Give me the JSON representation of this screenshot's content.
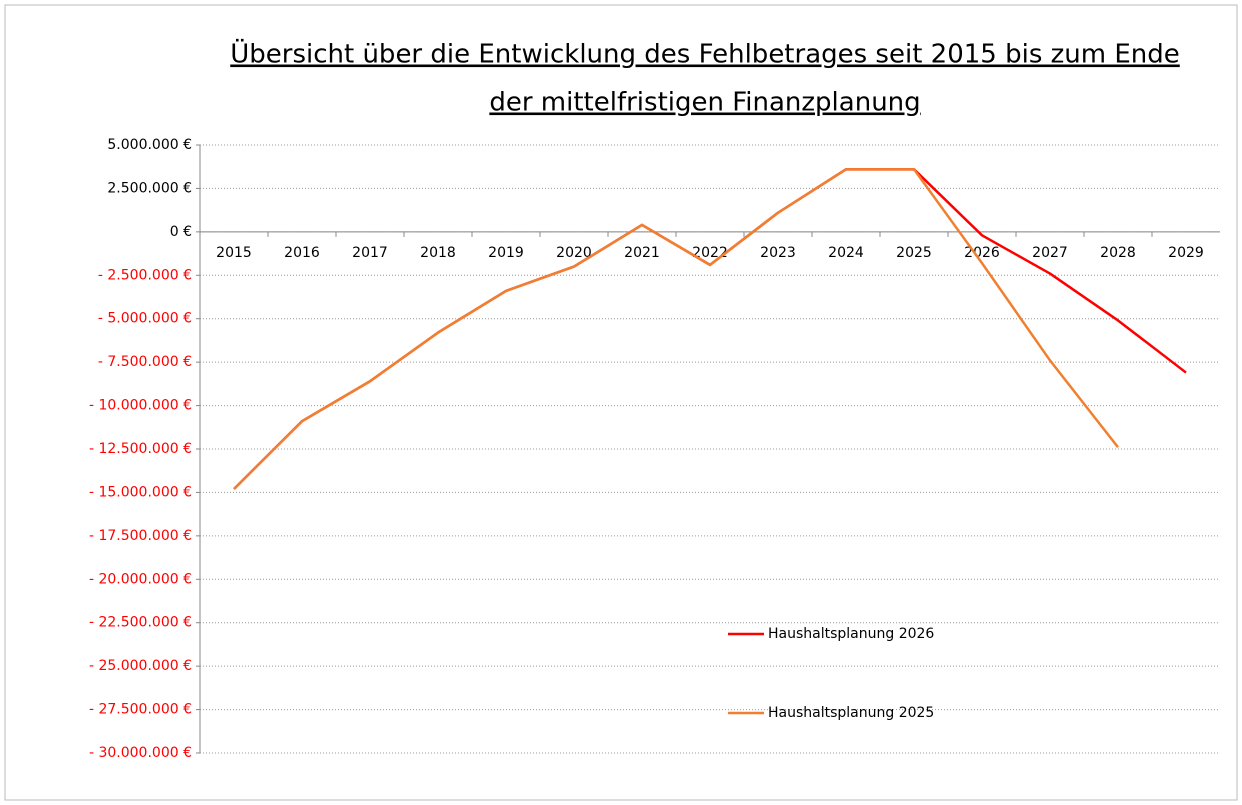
{
  "chart_data": {
    "type": "line",
    "title": [
      "Übersicht über die Entwicklung des Fehlbetrages seit 2015 bis zum Ende",
      "der mittelfristigen Finanzplanung"
    ],
    "categories": [
      "2015",
      "2016",
      "2017",
      "2018",
      "2019",
      "2020",
      "2021",
      "2022",
      "2023",
      "2024",
      "2025",
      "2026",
      "2027",
      "2028",
      "2029"
    ],
    "series": [
      {
        "name": "Haushaltsplanung 2026",
        "color": "#ff0000",
        "values": [
          -14800000,
          -10900000,
          -8600000,
          -5800000,
          -3400000,
          -2000000,
          400000,
          -1900000,
          1100000,
          3600000,
          3600000,
          -200000,
          -2400000,
          -5100000,
          -8100000
        ]
      },
      {
        "name": "Haushaltsplanung 2025",
        "color": "#f08030",
        "values": [
          -14800000,
          -10900000,
          -8600000,
          -5800000,
          -3400000,
          -2000000,
          400000,
          -1900000,
          1100000,
          3600000,
          3600000,
          -1800000,
          -7400000,
          -12400000,
          null
        ]
      }
    ],
    "ylim": [
      -30000000,
      5000000
    ],
    "yticks": [
      {
        "value": 5000000,
        "label": "5.000.000 €"
      },
      {
        "value": 2500000,
        "label": "2.500.000 €"
      },
      {
        "value": 0,
        "label": "0 €"
      },
      {
        "value": -2500000,
        "label": "- 2.500.000 €"
      },
      {
        "value": -5000000,
        "label": "- 5.000.000 €"
      },
      {
        "value": -7500000,
        "label": "- 7.500.000 €"
      },
      {
        "value": -10000000,
        "label": "- 10.000.000 €"
      },
      {
        "value": -12500000,
        "label": "- 12.500.000 €"
      },
      {
        "value": -15000000,
        "label": "- 15.000.000 €"
      },
      {
        "value": -17500000,
        "label": "- 17.500.000 €"
      },
      {
        "value": -20000000,
        "label": "- 20.000.000 €"
      },
      {
        "value": -22500000,
        "label": "- 22.500.000 €"
      },
      {
        "value": -25000000,
        "label": "- 25.000.000 €"
      },
      {
        "value": -27500000,
        "label": "- 27.500.000 €"
      },
      {
        "value": -30000000,
        "label": "- 30.000.000 €"
      }
    ],
    "negative_tick_color": "#ff0000",
    "grid": true
  }
}
